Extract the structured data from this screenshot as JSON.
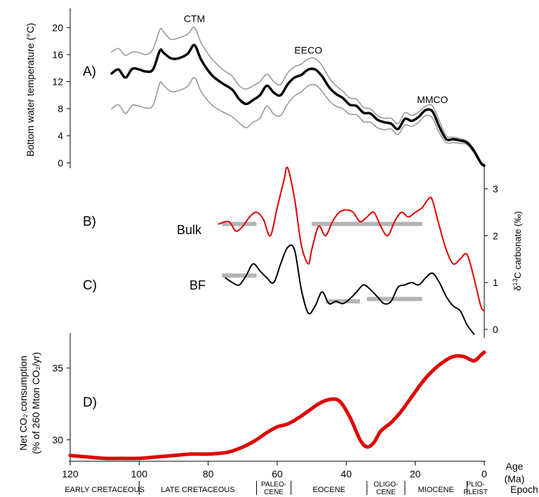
{
  "chart_data": [
    {
      "type": "line",
      "panel_label": "A)",
      "ylabel": "Bottom water temperature (°C)",
      "ylim": [
        -1,
        22
      ],
      "yticks": [
        0,
        4,
        8,
        12,
        16,
        20
      ],
      "annotations": [
        {
          "text": "CTM",
          "x": 84,
          "y": 20
        },
        {
          "text": "EECO",
          "x": 51,
          "y": 15.3
        },
        {
          "text": "MMCO",
          "x": 15,
          "y": 8
        }
      ],
      "series": [
        {
          "role": "mean",
          "color": "#000000",
          "x": [
            108,
            106,
            104,
            102,
            100,
            98,
            96,
            94,
            93,
            91,
            89,
            86,
            84,
            82,
            79,
            76,
            73,
            71,
            69,
            67,
            65,
            63,
            61,
            59,
            57,
            55,
            53,
            51,
            49,
            47,
            45,
            43,
            41,
            39,
            37,
            35,
            33,
            31,
            29,
            27,
            25,
            23,
            21,
            19,
            17,
            15,
            13,
            11,
            9,
            7,
            5,
            3,
            1,
            0
          ],
          "y": [
            13.2,
            13.8,
            12.6,
            13.9,
            13.8,
            13.5,
            13.8,
            16.6,
            16.3,
            15.5,
            15.4,
            16.1,
            17.4,
            15.2,
            13.0,
            11.8,
            10.8,
            9.4,
            8.7,
            9.3,
            10.0,
            11.4,
            10.4,
            10.0,
            11.6,
            12.6,
            13.0,
            13.8,
            13.8,
            12.8,
            11.2,
            10.2,
            9.6,
            8.6,
            8.4,
            7.4,
            7.3,
            6.4,
            6.0,
            5.8,
            5.0,
            6.5,
            6.2,
            6.8,
            7.8,
            7.6,
            5.3,
            3.5,
            3.5,
            3.3,
            3.0,
            1.8,
            0,
            -0.4
          ]
        },
        {
          "role": "upper",
          "color": "#999999",
          "x": [
            108,
            106,
            104,
            102,
            100,
            98,
            96,
            94,
            93,
            91,
            89,
            86,
            84,
            82,
            79,
            76,
            73,
            71,
            69,
            67,
            65,
            63,
            61,
            59,
            57,
            55,
            53,
            51,
            49,
            47,
            45,
            43,
            41,
            39,
            37,
            35,
            33,
            31,
            29,
            27,
            25,
            23,
            21,
            19,
            17,
            15,
            13,
            11,
            9,
            7,
            5,
            3,
            1,
            0
          ],
          "y": [
            16.4,
            16.9,
            15.9,
            16.4,
            16.3,
            16.0,
            16.8,
            19.7,
            19.4,
            18.3,
            18.4,
            19.0,
            20.0,
            17.7,
            15.4,
            13.9,
            12.8,
            11.4,
            10.9,
            11.4,
            12.0,
            13.1,
            12.0,
            11.6,
            13.3,
            14.2,
            14.6,
            15.4,
            15.4,
            14.4,
            12.6,
            11.4,
            10.6,
            9.6,
            9.4,
            8.2,
            8.0,
            7.0,
            6.6,
            6.6,
            5.8,
            7.4,
            7.0,
            7.5,
            8.4,
            8.4,
            6.2,
            4.0,
            3.8,
            3.6,
            3.2,
            2.0,
            0.2,
            -0.2
          ]
        },
        {
          "role": "lower",
          "color": "#999999",
          "x": [
            108,
            106,
            104,
            102,
            100,
            98,
            96,
            94,
            93,
            91,
            89,
            86,
            84,
            82,
            79,
            76,
            73,
            71,
            69,
            67,
            65,
            63,
            61,
            59,
            57,
            55,
            53,
            51,
            49,
            47,
            45,
            43,
            41,
            39,
            37,
            35,
            33,
            31,
            29,
            27,
            25,
            23,
            21,
            19,
            17,
            15,
            13,
            11,
            9,
            7,
            5,
            3,
            1,
            0
          ],
          "y": [
            8.0,
            8.6,
            7.3,
            8.5,
            8.4,
            8.1,
            8.5,
            11.8,
            11.5,
            10.6,
            10.6,
            11.3,
            12.6,
            10.5,
            8.6,
            7.6,
            6.8,
            5.9,
            5.2,
            6.0,
            6.6,
            8.4,
            7.2,
            7.0,
            8.7,
            9.9,
            10.5,
            11.4,
            11.5,
            10.6,
            9.2,
            8.4,
            8.0,
            7.2,
            7.1,
            6.1,
            6.0,
            5.2,
            4.9,
            5.0,
            4.2,
            5.6,
            5.4,
            6.0,
            7.0,
            6.6,
            4.4,
            3.0,
            3.0,
            2.9,
            2.7,
            1.5,
            -0.2,
            -0.6
          ]
        }
      ]
    },
    {
      "type": "line",
      "panel_label": "B)",
      "series_label": "Bulk",
      "right_axis_label": "δ13C carbonate (‰)",
      "ylim": [
        -0.3,
        3.5
      ],
      "yticks": [
        0,
        1,
        2,
        3
      ],
      "series": [
        {
          "color": "#e00000",
          "x": [
            77,
            74,
            72,
            70,
            68,
            66,
            64,
            62,
            60,
            58,
            57,
            55,
            53,
            51,
            50,
            48,
            46,
            44,
            42,
            40,
            38,
            36,
            34,
            32,
            30,
            28,
            26,
            24,
            22,
            20,
            18,
            16,
            15,
            13,
            11,
            9,
            7,
            5,
            3,
            1,
            0
          ],
          "y": [
            2.25,
            2.3,
            2.1,
            2.2,
            2.4,
            2.5,
            2.35,
            2.0,
            2.6,
            3.2,
            3.45,
            2.8,
            1.8,
            1.4,
            1.7,
            2.2,
            2.0,
            2.3,
            2.5,
            2.55,
            2.5,
            2.3,
            2.4,
            2.5,
            2.2,
            2.0,
            2.3,
            2.5,
            2.4,
            2.5,
            2.6,
            2.8,
            2.75,
            2.2,
            1.7,
            1.4,
            1.5,
            1.6,
            1.1,
            0.5,
            0.4
          ]
        },
        {
          "role": "average-bar",
          "color": "#b4b4b4",
          "x": [
            76,
            66
          ],
          "y": [
            2.25,
            2.25
          ]
        },
        {
          "role": "average-bar",
          "color": "#b4b4b4",
          "x": [
            50,
            18
          ],
          "y": [
            2.25,
            2.25
          ]
        }
      ]
    },
    {
      "type": "line",
      "panel_label": "C)",
      "series_label": "BF",
      "ylim": [
        -0.3,
        3.5
      ],
      "series": [
        {
          "color": "#000000",
          "x": [
            75,
            73,
            71,
            69,
            67,
            65,
            63,
            61,
            59,
            57,
            55,
            53,
            51,
            49,
            47,
            45,
            43,
            41,
            39,
            37,
            35,
            33,
            31,
            29,
            27,
            25,
            23,
            21,
            19,
            17,
            15,
            13,
            11,
            9,
            7,
            5,
            3
          ],
          "y": [
            1.1,
            1.0,
            0.95,
            1.15,
            1.4,
            1.25,
            1.1,
            1.0,
            1.4,
            1.75,
            1.7,
            0.85,
            0.35,
            0.5,
            0.8,
            0.55,
            0.6,
            0.55,
            0.65,
            0.8,
            0.95,
            0.85,
            0.7,
            0.55,
            0.6,
            0.9,
            0.95,
            1.0,
            0.95,
            1.1,
            1.2,
            1.0,
            0.7,
            0.5,
            0.4,
            0.1,
            -0.1
          ]
        },
        {
          "role": "average-bar",
          "color": "#b4b4b4",
          "x": [
            76,
            66
          ],
          "y": [
            1.15,
            1.15
          ]
        },
        {
          "role": "average-bar",
          "color": "#b4b4b4",
          "x": [
            46,
            36
          ],
          "y": [
            0.6,
            0.6
          ]
        },
        {
          "role": "average-bar",
          "color": "#b4b4b4",
          "x": [
            34,
            18
          ],
          "y": [
            0.65,
            0.65
          ]
        }
      ]
    },
    {
      "type": "line",
      "panel_label": "D)",
      "ylabel_line1": "Net CO₂ consumption",
      "ylabel_line2": "(% of 260 Mton CO₂/yr)",
      "ylim": [
        28.5,
        37.2
      ],
      "yticks": [
        30,
        35
      ],
      "series": [
        {
          "color": "#e00000",
          "x": [
            120,
            115,
            110,
            105,
            100,
            95,
            90,
            85,
            80,
            75,
            72,
            69,
            66,
            63,
            60,
            57,
            54,
            51,
            48,
            45,
            42,
            39,
            36,
            34,
            32,
            30,
            27,
            24,
            21,
            18,
            15,
            12,
            9,
            6,
            3,
            1,
            0
          ],
          "y": [
            28.9,
            28.8,
            28.7,
            28.7,
            28.7,
            28.8,
            28.9,
            29.0,
            29.0,
            29.1,
            29.3,
            29.6,
            30.0,
            30.5,
            30.9,
            31.1,
            31.5,
            32.0,
            32.5,
            32.8,
            32.7,
            31.6,
            30.0,
            29.5,
            29.8,
            30.6,
            31.2,
            32.0,
            33.0,
            34.0,
            34.8,
            35.4,
            35.8,
            35.8,
            35.5,
            35.9,
            36.1
          ]
        }
      ]
    }
  ],
  "x_axis": {
    "label_line1": "Age",
    "label_line2": "(Ma)",
    "xlim": [
      120,
      0
    ],
    "ticks": [
      120,
      100,
      80,
      60,
      40,
      20,
      0
    ]
  },
  "epochs": {
    "label": "Epoch",
    "items": [
      {
        "name": "EARLY CRETACEOUS",
        "from": 120,
        "to": 100
      },
      {
        "name": "LATE CRETACEOUS",
        "from": 100,
        "to": 66
      },
      {
        "name": "PALEO-\nCENE",
        "from": 66,
        "to": 56
      },
      {
        "name": "EOCENE",
        "from": 56,
        "to": 34
      },
      {
        "name": "OLIGO-\nCENE",
        "from": 34,
        "to": 23
      },
      {
        "name": "MIOCENE",
        "from": 23,
        "to": 5
      },
      {
        "name": "PLIO-\nPLEIST",
        "from": 5,
        "to": 0
      }
    ]
  }
}
